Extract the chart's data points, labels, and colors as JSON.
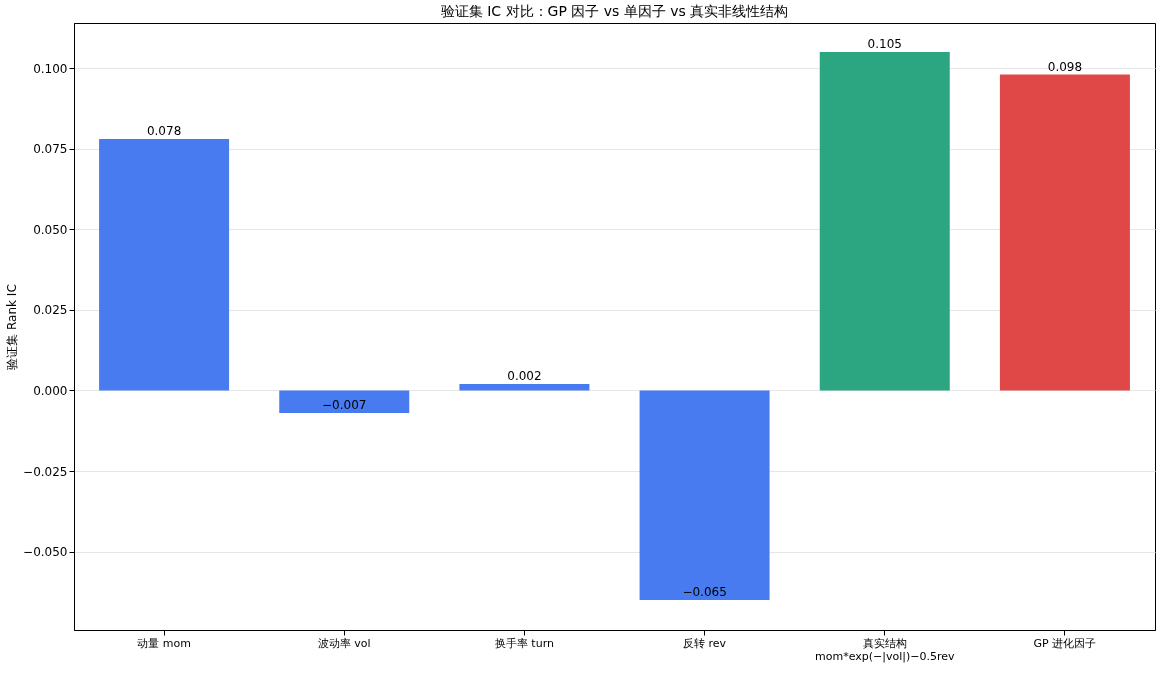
{
  "chart_data": {
    "type": "bar",
    "title": "验证集 IC 对比：GP 因子 vs 单因子 vs 真实非线性结构",
    "ylabel": "验证集 Rank IC",
    "categories": [
      "动量 mom",
      "波动率 vol",
      "换手率 turn",
      "反转 rev",
      "真实结构\nmom*exp(−|vol|)−0.5rev",
      "GP 进化因子"
    ],
    "values": [
      0.078,
      -0.007,
      0.002,
      -0.065,
      0.105,
      0.098
    ],
    "value_labels": [
      "0.078",
      "−0.007",
      "0.002",
      "−0.065",
      "0.105",
      "0.098"
    ],
    "colors": [
      "#477bef",
      "#477bef",
      "#477bef",
      "#477bef",
      "#2ba680",
      "#e04747"
    ],
    "ylim": [
      -0.0743,
      0.114
    ],
    "yticks": [
      {
        "value": -0.05,
        "label": "−0.050"
      },
      {
        "value": -0.025,
        "label": "−0.025"
      },
      {
        "value": 0,
        "label": "0.000"
      },
      {
        "value": 0.025,
        "label": "0.025"
      },
      {
        "value": 0.05,
        "label": "0.050"
      },
      {
        "value": 0.075,
        "label": "0.075"
      },
      {
        "value": 0.1,
        "label": "0.100"
      }
    ],
    "grid": "y"
  }
}
